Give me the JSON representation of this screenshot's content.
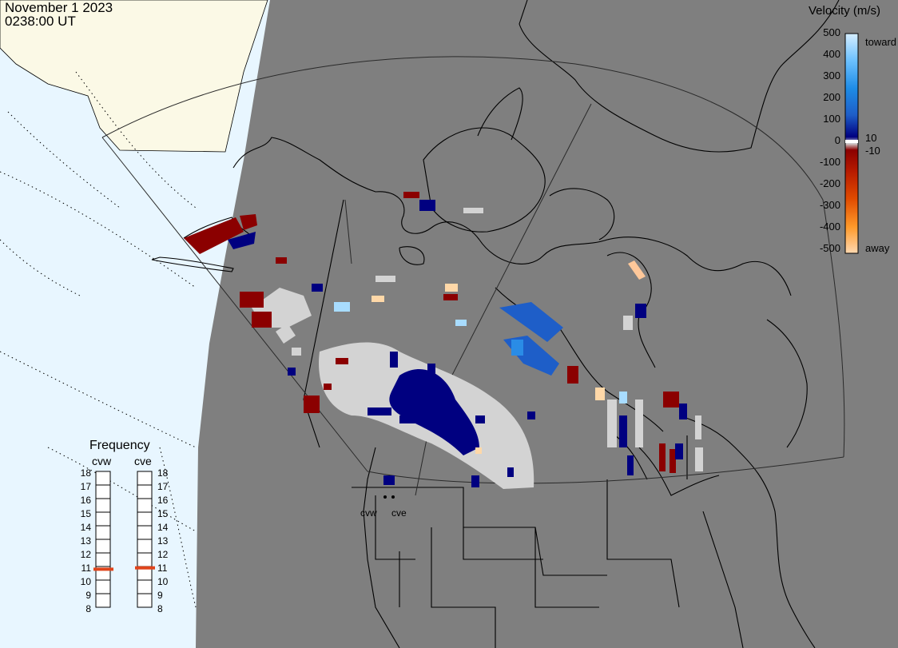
{
  "header": {
    "date": "November 1 2023",
    "time": "0238:00 UT"
  },
  "velocity_scale": {
    "title": "Velocity (m/s)",
    "ticks": [
      "500",
      "400",
      "300",
      "200",
      "100",
      "0",
      "-100",
      "-200",
      "-300",
      "-400",
      "-500"
    ],
    "near_zero_pos": "10",
    "near_zero_neg": "-10",
    "toward_label": "toward",
    "away_label": "away"
  },
  "frequency_panel": {
    "title": "Frequency",
    "radars": [
      "cvw",
      "cve"
    ],
    "ticks": [
      "18",
      "17",
      "16",
      "15",
      "14",
      "13",
      "12",
      "11",
      "10",
      "9",
      "8"
    ],
    "cvw_mhz": 10.8,
    "cve_mhz": 10.9
  },
  "radar_labels": [
    "cvw",
    "cve"
  ],
  "colors": {
    "ocean": "#e8f6ff",
    "night": "#7f7f7f",
    "sunlit_land": "#fbf9e6",
    "ground_scatter": "#d3d3d3",
    "frequency_marker": "#e0441b"
  }
}
